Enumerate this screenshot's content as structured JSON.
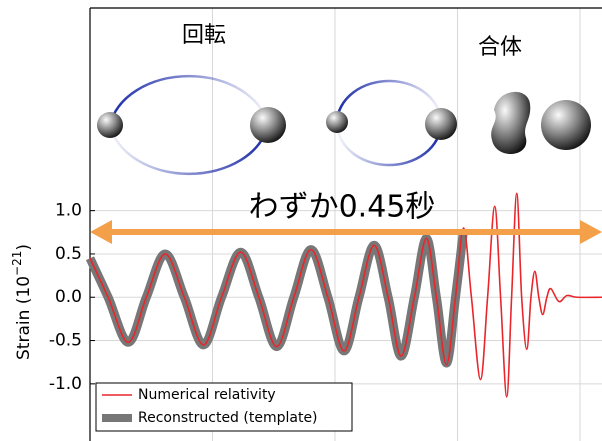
{
  "chart_data": {
    "type": "line",
    "annotations": [
      "回転",
      "合体",
      "わずか0.45秒"
    ],
    "ylabel": [
      "Strain (10",
      "−21",
      ")"
    ],
    "xlim": [
      0.25,
      0.459
    ],
    "xticks": [
      0.3,
      0.35,
      0.4,
      0.45
    ],
    "ylim": [
      -1.66,
      3.34
    ],
    "yticks": [
      {
        "value": 1,
        "label": "1.0"
      },
      0.5,
      {
        "value": 0,
        "label": "0.0"
      },
      -0.5,
      {
        "value": -1,
        "label": "-1.0"
      }
    ],
    "grid": true,
    "legend": "lower left",
    "x": [
      0.25,
      0.2574,
      0.2656,
      0.273,
      0.2807,
      0.2885,
      0.2963,
      0.3037,
      0.3115,
      0.3189,
      0.3262,
      0.3332,
      0.3402,
      0.3471,
      0.3537,
      0.3598,
      0.366,
      0.3717,
      0.377,
      0.3824,
      0.3873,
      0.3914,
      0.3955,
      0.3992,
      0.4025,
      0.4057,
      0.4094,
      0.4123,
      0.4152,
      0.4176,
      0.4201,
      0.4221,
      0.4242,
      0.4262,
      0.4283,
      0.43,
      0.4316,
      0.4332,
      0.4348,
      0.4365,
      0.4381,
      0.4414,
      0.4447,
      0.4488,
      0.459
    ],
    "series": [
      {
        "name": "Reconstructed (template)",
        "color": "#777777",
        "width": 9,
        "values": [
          0.45,
          0,
          -0.52,
          0,
          0.5,
          0,
          -0.55,
          0,
          0.52,
          0,
          -0.57,
          0,
          0.55,
          0,
          -0.62,
          0,
          0.6,
          0,
          -0.68,
          0,
          0.68,
          0,
          -0.76,
          0,
          0.78,
          null,
          null,
          null,
          null,
          null,
          null,
          null,
          null,
          null,
          null,
          null,
          null,
          null,
          null,
          null,
          null,
          null,
          null,
          null,
          null
        ]
      },
      {
        "name": "Numerical relativity",
        "color": "#e8262b",
        "width": 1.6,
        "values": [
          0.45,
          0,
          -0.52,
          0,
          0.5,
          0,
          -0.55,
          0,
          0.52,
          0,
          -0.57,
          0,
          0.55,
          0,
          -0.62,
          0,
          0.6,
          0,
          -0.68,
          0,
          0.68,
          0,
          -0.78,
          0,
          0.8,
          0,
          -0.95,
          0,
          1.05,
          0,
          -1.15,
          0,
          1.2,
          0,
          -0.6,
          0,
          0.3,
          0,
          -0.2,
          0,
          0.1,
          -0.05,
          0.02,
          0,
          0
        ]
      }
    ]
  }
}
